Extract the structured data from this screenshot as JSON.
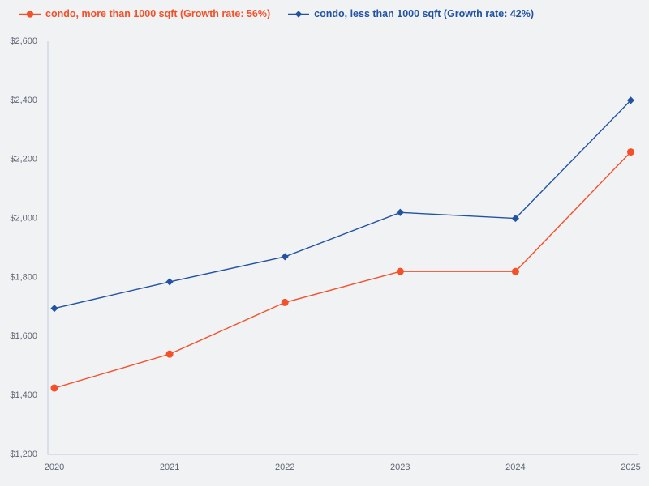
{
  "page": {
    "background": "#f1f2f4",
    "axis_line_color": "#c8d2e6",
    "tick_label_color": "#5f6672"
  },
  "chart_data": {
    "type": "line",
    "x": [
      2020,
      2021,
      2022,
      2023,
      2024,
      2025
    ],
    "xtick_labels": [
      "2020",
      "2021",
      "2022",
      "2023",
      "2024",
      "2025"
    ],
    "series": [
      {
        "name": "condo, more than 1000 sqft (Growth rate: 56%)",
        "color": "#f4502a",
        "marker": "circle",
        "values": [
          1425,
          1540,
          1715,
          1820,
          1820,
          2225
        ]
      },
      {
        "name": "condo, less than 1000 sqft (Growth rate: 42%)",
        "color": "#2253a3",
        "marker": "diamond",
        "values": [
          1695,
          1785,
          1870,
          2020,
          2000,
          2400
        ]
      }
    ],
    "title": "",
    "xlabel": "",
    "ylabel": "",
    "ylim": [
      1200,
      2600
    ],
    "ytick_step": 200,
    "ytick_labels": [
      "$1,200",
      "$1,400",
      "$1,600",
      "$1,800",
      "$2,000",
      "$2,200",
      "$2,400",
      "$2,600"
    ],
    "grid": false,
    "legend_position": "top-left"
  }
}
